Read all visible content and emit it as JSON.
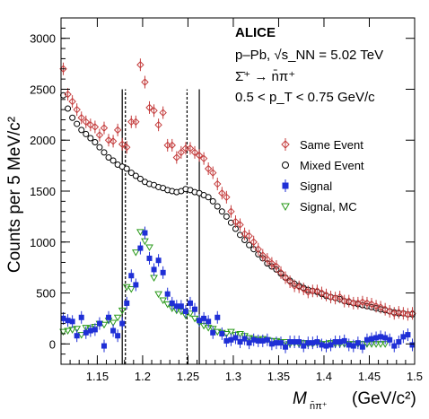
{
  "chart_data": {
    "type": "scatter",
    "xlabel": "M",
    "xlabel_sub": "n̄π⁺",
    "xlabel_unit": "(GeV/c²)",
    "ylabel": "Counts per 5 MeV/c²",
    "xlim": [
      1.11,
      1.5
    ],
    "ylim": [
      -200,
      3200
    ],
    "xticks": [
      1.15,
      1.2,
      1.25,
      1.3,
      1.35,
      1.4,
      1.45,
      1.5
    ],
    "yticks": [
      0,
      500,
      1000,
      1500,
      2000,
      2500,
      3000
    ],
    "xtick_labels": [
      "1.15",
      "1.2",
      "1.25",
      "1.3",
      "1.35",
      "1.4",
      "1.45",
      "1.5"
    ],
    "ytick_labels": [
      "0",
      "500",
      "1000",
      "1500",
      "2000",
      "2500",
      "3000"
    ],
    "annotations": [
      "ALICE",
      "p–Pb, √s_NN = 5.02 TeV",
      "Σ̄⁺ → n̄π⁺",
      "0.5 < p_T < 0.75 GeV/c"
    ],
    "vlines": [
      {
        "x": 1.1775,
        "style": "solid"
      },
      {
        "x": 1.2625,
        "style": "solid"
      },
      {
        "x": 1.181,
        "style": "dashed"
      },
      {
        "x": 1.249,
        "style": "dashed"
      }
    ],
    "vline_top": 2500,
    "series": [
      {
        "name": "Same Event",
        "marker": "diamond-open",
        "color": "#c43c3c",
        "x": [
          1.1125,
          1.1175,
          1.1225,
          1.1275,
          1.1325,
          1.1375,
          1.1425,
          1.1475,
          1.1525,
          1.1575,
          1.1625,
          1.1675,
          1.1725,
          1.1775,
          1.1825,
          1.1875,
          1.1925,
          1.1975,
          1.2025,
          1.2075,
          1.2125,
          1.2175,
          1.2225,
          1.2275,
          1.2325,
          1.2375,
          1.2425,
          1.2475,
          1.2525,
          1.2575,
          1.2625,
          1.2675,
          1.2725,
          1.2775,
          1.2825,
          1.2875,
          1.2925,
          1.2975,
          1.3025,
          1.3075,
          1.3125,
          1.3175,
          1.3225,
          1.3275,
          1.3325,
          1.3375,
          1.3425,
          1.3475,
          1.3525,
          1.3575,
          1.3625,
          1.3675,
          1.3725,
          1.3775,
          1.3825,
          1.3875,
          1.3925,
          1.3975,
          1.4025,
          1.4075,
          1.4125,
          1.4175,
          1.4225,
          1.4275,
          1.4325,
          1.4375,
          1.4425,
          1.4475,
          1.4525,
          1.4575,
          1.4625,
          1.4675,
          1.4725,
          1.4775,
          1.4825,
          1.4875,
          1.4925,
          1.4975
        ],
        "y": [
          2700,
          2450,
          2380,
          2300,
          2220,
          2180,
          2150,
          2130,
          2050,
          2120,
          2000,
          1990,
          2100,
          1960,
          1930,
          2180,
          2180,
          2740,
          2570,
          2320,
          2290,
          2150,
          2270,
          1950,
          1950,
          1830,
          1880,
          1920,
          1920,
          1880,
          1850,
          1820,
          1720,
          1680,
          1570,
          1480,
          1440,
          1300,
          1200,
          1170,
          1080,
          1060,
          1000,
          930,
          870,
          830,
          790,
          760,
          700,
          650,
          610,
          570,
          560,
          540,
          510,
          520,
          520,
          500,
          480,
          460,
          450,
          460,
          420,
          420,
          400,
          400,
          410,
          400,
          390,
          370,
          360,
          340,
          320,
          300,
          310,
          300,
          290,
          300
        ]
      },
      {
        "name": "Mixed Event",
        "marker": "circle-open",
        "color": "#000000",
        "x": [
          1.1125,
          1.1175,
          1.1225,
          1.1275,
          1.1325,
          1.1375,
          1.1425,
          1.1475,
          1.1525,
          1.1575,
          1.1625,
          1.1675,
          1.1725,
          1.1775,
          1.1825,
          1.1875,
          1.1925,
          1.1975,
          1.2025,
          1.2075,
          1.2125,
          1.2175,
          1.2225,
          1.2275,
          1.2325,
          1.2375,
          1.2425,
          1.2475,
          1.2525,
          1.2575,
          1.2625,
          1.2675,
          1.2725,
          1.2775,
          1.2825,
          1.2875,
          1.2925,
          1.2975,
          1.3025,
          1.3075,
          1.3125,
          1.3175,
          1.3225,
          1.3275,
          1.3325,
          1.3375,
          1.3425,
          1.3475,
          1.3525,
          1.3575,
          1.3625,
          1.3675,
          1.3725,
          1.3775,
          1.3825,
          1.3875,
          1.3925,
          1.3975,
          1.4025,
          1.4075,
          1.4125,
          1.4175,
          1.4225,
          1.4275,
          1.4325,
          1.4375,
          1.4425,
          1.4475,
          1.4525,
          1.4575,
          1.4625,
          1.4675,
          1.4725,
          1.4775,
          1.4825,
          1.4875,
          1.4925,
          1.4975
        ],
        "y": [
          2440,
          2310,
          2220,
          2160,
          2100,
          2060,
          2020,
          1980,
          1930,
          1880,
          1830,
          1800,
          1760,
          1740,
          1720,
          1680,
          1650,
          1620,
          1590,
          1570,
          1560,
          1540,
          1530,
          1510,
          1500,
          1490,
          1500,
          1520,
          1510,
          1490,
          1480,
          1460,
          1440,
          1400,
          1350,
          1300,
          1250,
          1190,
          1130,
          1070,
          1020,
          970,
          930,
          880,
          840,
          790,
          760,
          730,
          690,
          650,
          620,
          590,
          570,
          550,
          530,
          520,
          510,
          490,
          470,
          460,
          450,
          440,
          420,
          410,
          400,
          390,
          380,
          370,
          360,
          350,
          340,
          330,
          320,
          310,
          300,
          300,
          290,
          290
        ]
      },
      {
        "name": "Signal",
        "marker": "square-filled",
        "color": "#1f2fd6",
        "x": [
          1.1125,
          1.1175,
          1.1225,
          1.1275,
          1.1325,
          1.1375,
          1.1425,
          1.1475,
          1.1525,
          1.1575,
          1.1625,
          1.1675,
          1.1725,
          1.1775,
          1.1825,
          1.1875,
          1.1925,
          1.1975,
          1.2025,
          1.2075,
          1.2125,
          1.2175,
          1.2225,
          1.2275,
          1.2325,
          1.2375,
          1.2425,
          1.2475,
          1.2525,
          1.2575,
          1.2625,
          1.2675,
          1.2725,
          1.2775,
          1.2825,
          1.2875,
          1.2925,
          1.2975,
          1.3025,
          1.3075,
          1.3125,
          1.3175,
          1.3225,
          1.3275,
          1.3325,
          1.3375,
          1.3425,
          1.3475,
          1.3525,
          1.3575,
          1.3625,
          1.3675,
          1.3725,
          1.3775,
          1.3825,
          1.3875,
          1.3925,
          1.3975,
          1.4025,
          1.4075,
          1.4125,
          1.4175,
          1.4225,
          1.4275,
          1.4325,
          1.4375,
          1.4425,
          1.4475,
          1.4525,
          1.4575,
          1.4625,
          1.4675,
          1.4725,
          1.4775,
          1.4825,
          1.4875,
          1.4925,
          1.4975
        ],
        "y": [
          250,
          230,
          220,
          80,
          260,
          110,
          130,
          140,
          200,
          -20,
          260,
          130,
          80,
          200,
          400,
          670,
          580,
          940,
          1090,
          840,
          730,
          820,
          700,
          490,
          400,
          370,
          370,
          320,
          400,
          340,
          230,
          250,
          220,
          110,
          260,
          100,
          30,
          40,
          60,
          20,
          50,
          10,
          40,
          30,
          30,
          40,
          0,
          10,
          10,
          -30,
          20,
          20,
          20,
          -20,
          10,
          10,
          20,
          -10,
          -20,
          -10,
          20,
          20,
          30,
          -10,
          -20,
          10,
          -30,
          40,
          50,
          60,
          70,
          60,
          40,
          -20,
          20,
          70,
          90,
          -10
        ]
      },
      {
        "name": "Signal, MC",
        "marker": "triangle-down-open",
        "color": "#2a9a1a",
        "x": [
          1.1125,
          1.1175,
          1.1225,
          1.1275,
          1.1325,
          1.1375,
          1.1425,
          1.1475,
          1.1525,
          1.1575,
          1.1625,
          1.1675,
          1.1725,
          1.1775,
          1.1825,
          1.1875,
          1.1925,
          1.1975,
          1.2025,
          1.2075,
          1.2125,
          1.2175,
          1.2225,
          1.2275,
          1.2325,
          1.2375,
          1.2425,
          1.2475,
          1.2525,
          1.2575,
          1.2625,
          1.2675,
          1.2725,
          1.2775,
          1.2825,
          1.2875,
          1.2925,
          1.2975,
          1.3025,
          1.3075,
          1.3125,
          1.3175,
          1.3225,
          1.3275,
          1.3325,
          1.3375,
          1.3425,
          1.3475,
          1.3525,
          1.3575,
          1.3625,
          1.3675,
          1.3725,
          1.3775,
          1.3825,
          1.3875,
          1.3925,
          1.3975,
          1.4025,
          1.4075,
          1.4125,
          1.4175,
          1.4225,
          1.4275,
          1.4325,
          1.4375,
          1.4425,
          1.4475,
          1.4525,
          1.4575,
          1.4625,
          1.4675
        ],
        "y": [
          120,
          130,
          140,
          150,
          90,
          160,
          150,
          170,
          200,
          190,
          230,
          210,
          260,
          330,
          560,
          540,
          900,
          1100,
          1010,
          950,
          650,
          490,
          430,
          390,
          350,
          330,
          320,
          280,
          300,
          250,
          210,
          180,
          160,
          150,
          120,
          110,
          100,
          120,
          90,
          100,
          80,
          60,
          50,
          40,
          50,
          40,
          30,
          30,
          20,
          20,
          0,
          10,
          0,
          10,
          0,
          0,
          10,
          0,
          0,
          10,
          0,
          0,
          0,
          0,
          0,
          0,
          0,
          0,
          0,
          0,
          0,
          0
        ]
      }
    ],
    "legend_position": "right-middle"
  }
}
